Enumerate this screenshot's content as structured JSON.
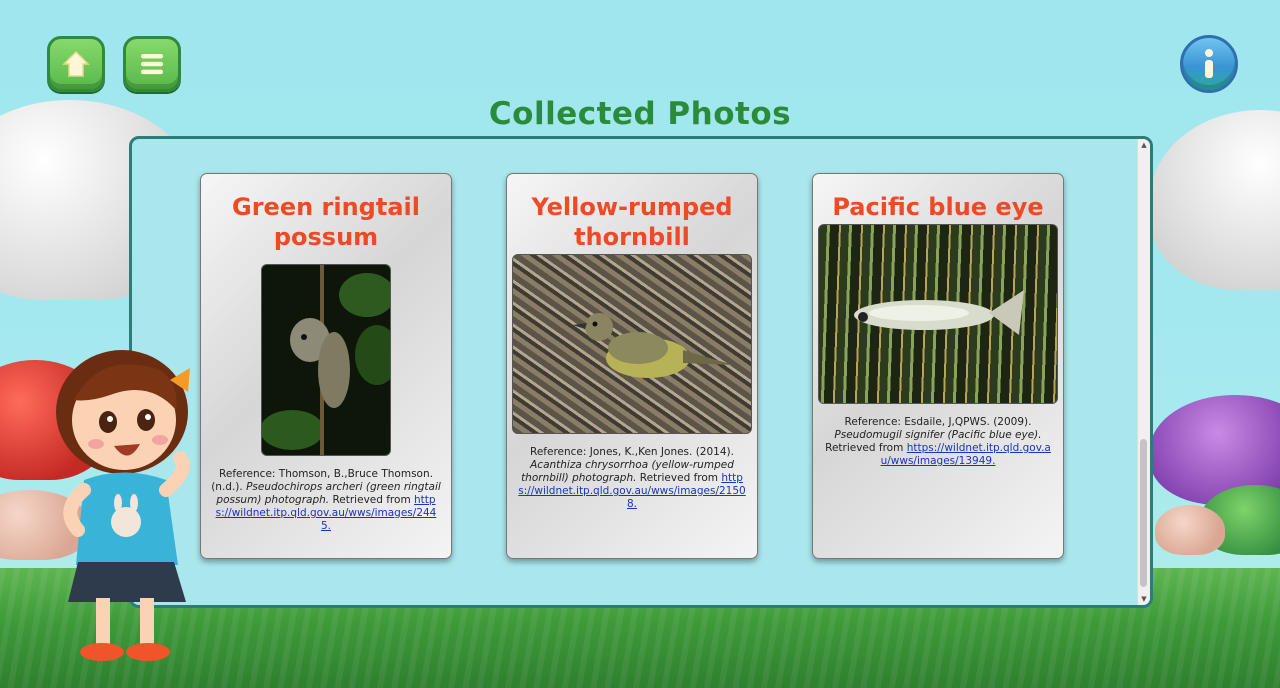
{
  "page": {
    "title": "Collected Photos"
  },
  "top_bar": {
    "home_icon": "home-icon",
    "menu_icon": "hamburger-menu-icon",
    "info_icon": "info-icon"
  },
  "colors": {
    "title_green": "#2c8b3a",
    "card_title_orange": "#ee4a23",
    "link_blue": "#1a33c4",
    "panel_border": "#2c7c7a"
  },
  "cards": [
    {
      "title": "Green ringtail possum",
      "ref_prefix": "Reference: Thomson, B.,Bruce Thomson. (n.d.).",
      "species": "Pseudochirops archeri (green ringtail possum) photograph.",
      "ref_suffix": "Retrieved from",
      "link": "https://wildnet.itp.qld.gov.au/wws/images/2445."
    },
    {
      "title": "Yellow-rumped thornbill",
      "ref_prefix": "Reference: Jones, K.,Ken Jones. (2014).",
      "species": "Acanthiza chrysorrhoa (yellow-rumped thornbill) photograph.",
      "ref_suffix": "Retrieved from",
      "link": "https://wildnet.itp.qld.gov.au/wws/images/21508."
    },
    {
      "title": "Pacific blue eye",
      "ref_prefix": "Reference: Esdaile, J,QPWS. (2009).",
      "species": "Pseudomugil signifer (Pacific blue eye).",
      "ref_suffix": "Retrieved from",
      "link": "https://wildnet.itp.qld.gov.au/wws/images/13949."
    }
  ]
}
